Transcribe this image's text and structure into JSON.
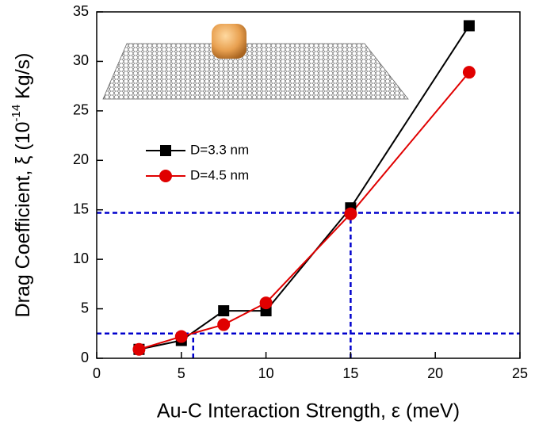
{
  "chart_data": {
    "type": "line",
    "xlabel": "Au-C Interaction Strength, ε (meV)",
    "ylabel": [
      "Drag Coefficient, ξ (10",
      "-14",
      " Kg/s)"
    ],
    "xlim": [
      0,
      25
    ],
    "xticks": [
      0,
      5,
      10,
      15,
      20,
      25
    ],
    "ylim": [
      0,
      35
    ],
    "yticks": [
      0,
      5,
      10,
      15,
      20,
      25,
      30,
      35
    ],
    "legend": "upper left",
    "series": [
      {
        "name": "D=3.3 nm",
        "color": "#000000",
        "marker": "square",
        "x": [
          2.5,
          5,
          7.5,
          10,
          15,
          22
        ],
        "values": [
          0.9,
          1.8,
          4.8,
          4.8,
          15.2,
          33.6
        ]
      },
      {
        "name": "D=4.5 nm",
        "color": "#e00000",
        "marker": "circle",
        "x": [
          2.5,
          5,
          7.5,
          10,
          15,
          22
        ],
        "values": [
          0.9,
          2.2,
          3.4,
          5.6,
          14.6,
          28.9
        ]
      }
    ],
    "guides": [
      {
        "x": 15,
        "y": 14.7
      },
      {
        "x": 5.7,
        "y": 2.5
      }
    ],
    "guide_color": "#0000cc"
  }
}
